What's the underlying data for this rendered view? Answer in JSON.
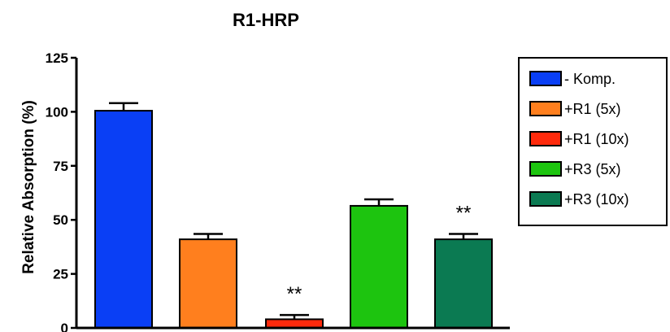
{
  "chart_data": {
    "type": "bar",
    "title": "R1-HRP",
    "xlabel": "",
    "ylabel": "Relative Absorption (%)",
    "ylim": [
      0,
      125
    ],
    "yticks": [
      "0",
      "25",
      "50",
      "75",
      "100",
      "125"
    ],
    "grid": false,
    "legend_position": "right",
    "categories": [
      "- Komp.",
      "+R1 (5x)",
      "+R1 (10x)",
      "+R3 (5x)",
      "+R3 (10x)"
    ],
    "values": [
      100.5,
      41,
      4,
      56.5,
      41
    ],
    "errors": [
      3.5,
      2.5,
      2,
      3,
      2.5
    ],
    "colors": [
      "#0a3ff5",
      "#ff7f1e",
      "#ff2a0c",
      "#1dc40f",
      "#0b7a52"
    ],
    "annotations": [
      "",
      "",
      "**",
      "",
      "**"
    ]
  }
}
